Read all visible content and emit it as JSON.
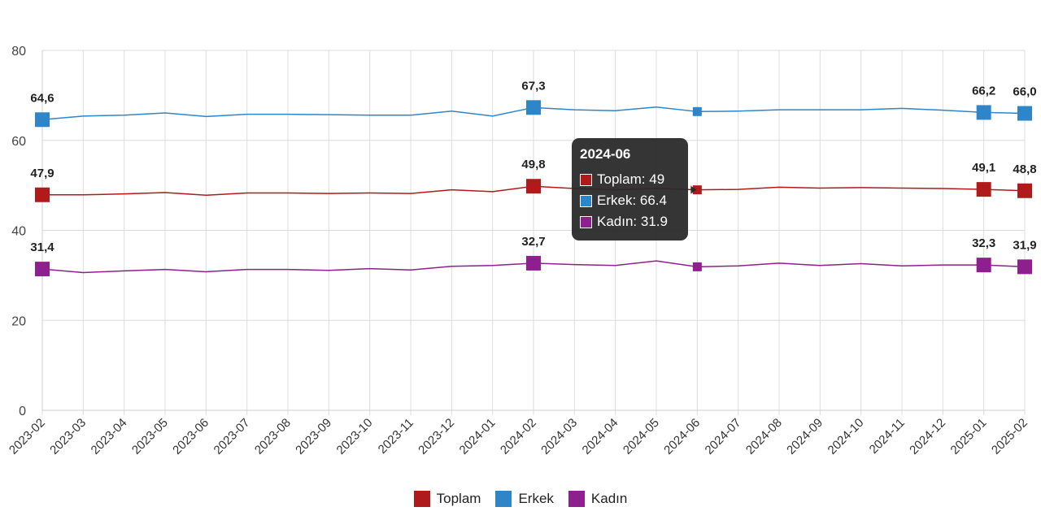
{
  "chart_data": {
    "type": "line",
    "x": [
      "2023-02",
      "2023-03",
      "2023-04",
      "2023-05",
      "2023-06",
      "2023-07",
      "2023-08",
      "2023-09",
      "2023-10",
      "2023-11",
      "2023-12",
      "2024-01",
      "2024-02",
      "2024-03",
      "2024-04",
      "2024-05",
      "2024-06",
      "2024-07",
      "2024-08",
      "2024-09",
      "2024-10",
      "2024-11",
      "2024-12",
      "2025-01",
      "2025-02"
    ],
    "ylim": [
      0,
      80
    ],
    "yticks": [
      0,
      20,
      40,
      60,
      80
    ],
    "grid": true,
    "legend_position": "bottom",
    "series": [
      {
        "name": "Toplam",
        "color": "#b01a1a",
        "values": [
          47.9,
          47.9,
          48.1,
          48.4,
          47.8,
          48.3,
          48.3,
          48.2,
          48.3,
          48.2,
          49.0,
          48.6,
          49.8,
          49.3,
          49.0,
          49.3,
          49.0,
          49.1,
          49.6,
          49.4,
          49.5,
          49.4,
          49.3,
          49.1,
          48.8
        ]
      },
      {
        "name": "Erkek",
        "color": "#2e86c8",
        "values": [
          64.6,
          65.4,
          65.6,
          66.1,
          65.3,
          65.8,
          65.8,
          65.7,
          65.6,
          65.6,
          66.5,
          65.4,
          67.3,
          66.8,
          66.6,
          67.4,
          66.4,
          66.5,
          66.8,
          66.8,
          66.8,
          67.1,
          66.7,
          66.2,
          66.0
        ]
      },
      {
        "name": "Kadın",
        "color": "#8e1f8e",
        "values": [
          31.4,
          30.6,
          31.0,
          31.3,
          30.8,
          31.3,
          31.3,
          31.1,
          31.5,
          31.2,
          32.0,
          32.2,
          32.7,
          32.4,
          32.2,
          33.2,
          31.9,
          32.1,
          32.7,
          32.2,
          32.6,
          32.1,
          32.3,
          32.3,
          31.9
        ]
      }
    ],
    "data_labels": [
      {
        "series": 1,
        "index": 0,
        "text": "64,6"
      },
      {
        "series": 0,
        "index": 0,
        "text": "47,9"
      },
      {
        "series": 2,
        "index": 0,
        "text": "31,4"
      },
      {
        "series": 1,
        "index": 12,
        "text": "67,3"
      },
      {
        "series": 0,
        "index": 12,
        "text": "49,8"
      },
      {
        "series": 2,
        "index": 12,
        "text": "32,7"
      },
      {
        "series": 1,
        "index": 23,
        "text": "66,2"
      },
      {
        "series": 0,
        "index": 23,
        "text": "49,1"
      },
      {
        "series": 2,
        "index": 23,
        "text": "32,3"
      },
      {
        "series": 1,
        "index": 24,
        "text": "66,0"
      },
      {
        "series": 0,
        "index": 24,
        "text": "48,8"
      },
      {
        "series": 2,
        "index": 24,
        "text": "31,9"
      }
    ],
    "highlighted_indices": [
      0,
      12,
      23,
      24
    ],
    "hover_index": 16
  },
  "legend": [
    {
      "label": "Toplam",
      "color": "#b01a1a"
    },
    {
      "label": "Erkek",
      "color": "#2e86c8"
    },
    {
      "label": "Kadın",
      "color": "#8e1f8e"
    }
  ],
  "tooltip": {
    "title": "2024-06",
    "rows": [
      {
        "text": "Toplam: 49",
        "color": "#b01a1a"
      },
      {
        "text": "Erkek: 66.4",
        "color": "#2e86c8"
      },
      {
        "text": "Kadın: 31.9",
        "color": "#8e1f8e"
      }
    ]
  }
}
